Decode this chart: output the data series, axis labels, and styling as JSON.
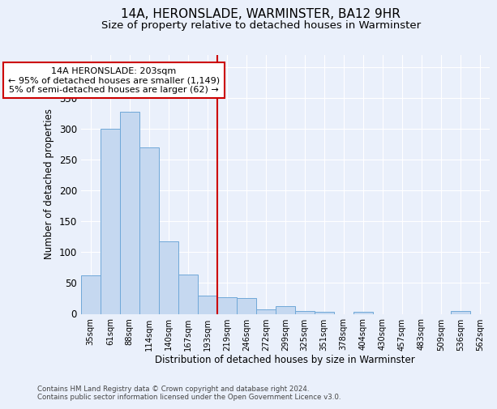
{
  "title": "14A, HERONSLADE, WARMINSTER, BA12 9HR",
  "subtitle": "Size of property relative to detached houses in Warminster",
  "xlabel": "Distribution of detached houses by size in Warminster",
  "ylabel": "Number of detached properties",
  "footnote": "Contains HM Land Registry data © Crown copyright and database right 2024.\nContains public sector information licensed under the Open Government Licence v3.0.",
  "bin_labels": [
    "35sqm",
    "61sqm",
    "88sqm",
    "114sqm",
    "140sqm",
    "167sqm",
    "193sqm",
    "219sqm",
    "246sqm",
    "272sqm",
    "299sqm",
    "325sqm",
    "351sqm",
    "378sqm",
    "404sqm",
    "430sqm",
    "457sqm",
    "483sqm",
    "509sqm",
    "536sqm",
    "562sqm"
  ],
  "bar_values": [
    62,
    300,
    328,
    270,
    118,
    64,
    30,
    27,
    25,
    7,
    12,
    5,
    3,
    0,
    3,
    0,
    0,
    0,
    0,
    4,
    0
  ],
  "bar_color": "#c5d8f0",
  "bar_edge_color": "#6fa8d8",
  "vline_x": 6.5,
  "vline_color": "#cc0000",
  "annotation_text": "14A HERONSLADE: 203sqm\n← 95% of detached houses are smaller (1,149)\n5% of semi-detached houses are larger (62) →",
  "annotation_box_color": "#ffffff",
  "annotation_box_edge_color": "#cc0000",
  "ylim": [
    0,
    420
  ],
  "yticks": [
    0,
    50,
    100,
    150,
    200,
    250,
    300,
    350,
    400
  ],
  "bg_color": "#eaf0fb",
  "plot_bg_color": "#eaf0fb",
  "grid_color": "#ffffff",
  "title_fontsize": 11,
  "subtitle_fontsize": 9.5
}
